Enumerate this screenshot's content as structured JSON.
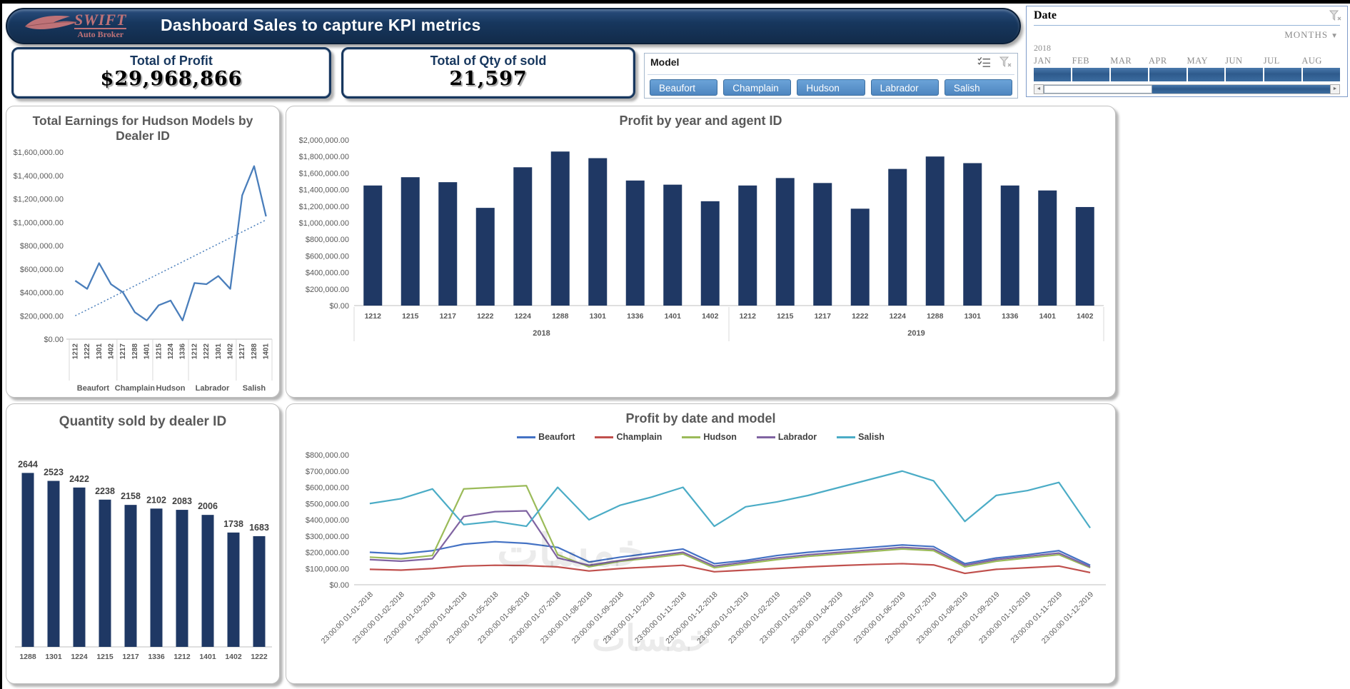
{
  "header": {
    "title": "Dashboard Sales to capture KPI metrics",
    "logo": {
      "line1": "SWIFT",
      "line2": "Auto Broker"
    }
  },
  "kpis": {
    "profit": {
      "title": "Total of Profit",
      "value": "$29,968,866"
    },
    "qty": {
      "title": "Total of Qty of sold",
      "value": "21,597"
    }
  },
  "model_slicer": {
    "label": "Model",
    "items": [
      "Beaufort",
      "Champlain",
      "Hudson",
      "Labrador",
      "Salish"
    ]
  },
  "date_slicer": {
    "label": "Date",
    "period_selector": "MONTHS",
    "year": "2018",
    "months": [
      "JAN",
      "FEB",
      "MAR",
      "APR",
      "MAY",
      "JUN",
      "JUL",
      "AUG"
    ],
    "all_selected": true
  },
  "watermark": "خمسات",
  "colors": {
    "navy": "#17375E",
    "bar": "#1F3864",
    "slicer_button": "#5B9BD5",
    "slicer_button_border": "#3C6E9F",
    "title_gray": "#595959",
    "logo_rose": "#BE7277"
  },
  "chart_data": [
    {
      "id": "earnings_by_dealer",
      "type": "line",
      "title": "Total Earnings for Hudson Models by Dealer ID",
      "ylim": [
        0,
        1600000
      ],
      "ytick_step": 200000,
      "grid": false,
      "line_color": "#4A7EBB",
      "trendline": {
        "style": "dotted",
        "start": 200000,
        "end": 1020000
      },
      "groups": [
        {
          "name": "Beaufort",
          "categories": [
            "1212",
            "1222",
            "1301",
            "1402"
          ],
          "values": [
            500000,
            430000,
            650000,
            470000
          ]
        },
        {
          "name": "Champlain",
          "categories": [
            "1217",
            "1288",
            "1401"
          ],
          "values": [
            400000,
            230000,
            160000
          ]
        },
        {
          "name": "Hudson",
          "categories": [
            "1215",
            "1224",
            "1336"
          ],
          "values": [
            290000,
            330000,
            160000
          ]
        },
        {
          "name": "Labrador",
          "categories": [
            "1212",
            "1222",
            "1301",
            "1402"
          ],
          "values": [
            480000,
            470000,
            540000,
            430000
          ]
        },
        {
          "name": "Salish",
          "categories": [
            "1217",
            "1288",
            "1401"
          ],
          "values": [
            1230000,
            1480000,
            1050000
          ]
        }
      ]
    },
    {
      "id": "profit_by_year_agent",
      "type": "bar",
      "title": "Profit by year and agent ID",
      "ylim": [
        0,
        2000000
      ],
      "ytick_step": 200000,
      "grid": false,
      "bar_color": "#1F3864",
      "groups": [
        {
          "name": "2018",
          "categories": [
            "1212",
            "1215",
            "1217",
            "1222",
            "1224",
            "1288",
            "1301",
            "1336",
            "1401",
            "1402"
          ],
          "values": [
            1450000,
            1550000,
            1490000,
            1180000,
            1670000,
            1860000,
            1780000,
            1510000,
            1460000,
            1260000
          ]
        },
        {
          "name": "2019",
          "categories": [
            "1212",
            "1215",
            "1217",
            "1222",
            "1224",
            "1288",
            "1301",
            "1336",
            "1401",
            "1402"
          ],
          "values": [
            1450000,
            1540000,
            1480000,
            1170000,
            1650000,
            1800000,
            1720000,
            1450000,
            1390000,
            1190000
          ]
        }
      ]
    },
    {
      "id": "qty_by_dealer",
      "type": "bar",
      "title": "Quantity sold by dealer ID",
      "categories": [
        "1288",
        "1301",
        "1224",
        "1215",
        "1217",
        "1336",
        "1212",
        "1401",
        "1402",
        "1222"
      ],
      "values": [
        2644,
        2523,
        2422,
        2238,
        2158,
        2102,
        2083,
        2006,
        1738,
        1683
      ],
      "data_labels": true,
      "ylim": [
        0,
        2800
      ],
      "grid": false,
      "bar_color": "#1F3864"
    },
    {
      "id": "profit_by_date_model",
      "type": "line",
      "title": "Profit by date and model",
      "ylim": [
        0,
        800000
      ],
      "ytick_step": 100000,
      "grid": false,
      "legend_position": "top",
      "x": [
        "23:00:00 01-01-2018",
        "23:00:00 01-02-2018",
        "23:00:00 01-03-2018",
        "23:00:00 01-04-2018",
        "23:00:00 01-05-2018",
        "23:00:00 01-06-2018",
        "23:00:00 01-07-2018",
        "23:00:00 01-08-2018",
        "23:00:00 01-09-2018",
        "23:00:00 01-10-2018",
        "23:00:00 01-11-2018",
        "23:00:00 01-12-2018",
        "23:00:00 01-01-2019",
        "23:00:00 01-02-2019",
        "23:00:00 01-03-2019",
        "23:00:00 01-04-2019",
        "23:00:00 01-05-2019",
        "23:00:00 01-06-2019",
        "23:00:00 01-07-2019",
        "23:00:00 01-08-2019",
        "23:00:00 01-09-2019",
        "23:00:00 01-10-2019",
        "23:00:00 01-11-2019",
        "23:00:00 01-12-2019"
      ],
      "series": [
        {
          "name": "Beaufort",
          "color": "#4472C4",
          "values": [
            200000,
            190000,
            210000,
            250000,
            265000,
            255000,
            230000,
            140000,
            170000,
            195000,
            220000,
            130000,
            150000,
            180000,
            200000,
            215000,
            230000,
            245000,
            235000,
            130000,
            165000,
            185000,
            210000,
            120000
          ]
        },
        {
          "name": "Champlain",
          "color": "#C0504D",
          "values": [
            95000,
            90000,
            100000,
            115000,
            120000,
            118000,
            110000,
            85000,
            100000,
            110000,
            120000,
            80000,
            90000,
            100000,
            110000,
            118000,
            125000,
            130000,
            122000,
            70000,
            95000,
            105000,
            115000,
            75000
          ]
        },
        {
          "name": "Hudson",
          "color": "#9BBB59",
          "values": [
            170000,
            160000,
            180000,
            590000,
            600000,
            610000,
            185000,
            110000,
            145000,
            165000,
            190000,
            105000,
            130000,
            155000,
            175000,
            190000,
            205000,
            220000,
            210000,
            110000,
            145000,
            165000,
            185000,
            105000
          ]
        },
        {
          "name": "Labrador",
          "color": "#8064A2",
          "values": [
            155000,
            145000,
            160000,
            420000,
            450000,
            455000,
            165000,
            120000,
            150000,
            175000,
            200000,
            115000,
            140000,
            165000,
            185000,
            200000,
            215000,
            230000,
            220000,
            120000,
            155000,
            175000,
            195000,
            110000
          ]
        },
        {
          "name": "Salish",
          "color": "#4BACC6",
          "values": [
            500000,
            530000,
            590000,
            370000,
            390000,
            360000,
            600000,
            400000,
            490000,
            540000,
            600000,
            360000,
            480000,
            510000,
            550000,
            600000,
            650000,
            700000,
            640000,
            390000,
            550000,
            580000,
            630000,
            350000
          ]
        }
      ]
    }
  ]
}
